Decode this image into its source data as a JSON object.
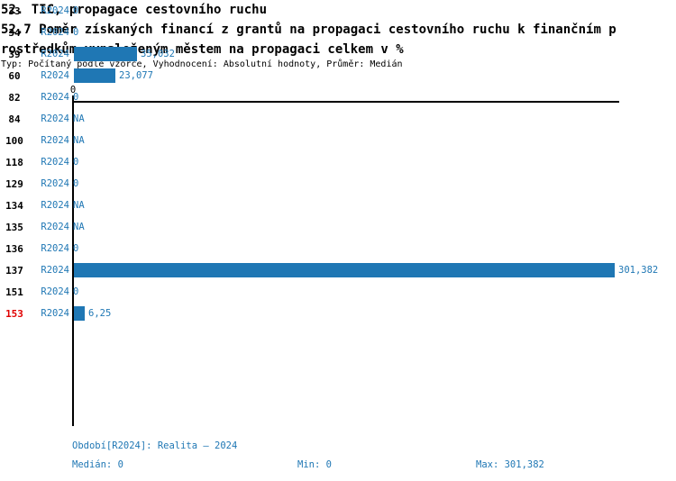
{
  "colors": {
    "blue": "#1f77b4",
    "red": "#e00000",
    "black": "#000000",
    "background": "#ffffff"
  },
  "header": {
    "line1": "52. TIC, propagace cestovního ruchu",
    "line2": "52.7 Poměr získaných financí z grantů na propagaci cestovního ruchu k finančním p",
    "line3": "rostředkům vynaloženým městem na propagaci celkem v %",
    "meta": "Typ: Počítaný podle vzorce, Vyhodnocení: Absolutní hodnoty, Průměr: Medián"
  },
  "chart_data": {
    "type": "bar",
    "orientation": "horizontal",
    "title": "52. TIC, propagace cestovního ruchu",
    "subtitle": "52.7 Poměr získaných financí z grantů na propagaci cestovního ruchu k finančním prostředkům vynaloženým městem na propagaci celkem v %",
    "value_axis": {
      "tick_labels": [
        "0"
      ],
      "range": [
        0,
        301.382
      ]
    },
    "categories": [
      "33",
      "34",
      "39",
      "60",
      "82",
      "84",
      "100",
      "118",
      "129",
      "134",
      "135",
      "136",
      "137",
      "151",
      "153"
    ],
    "series": [
      {
        "name": "R2024",
        "values": [
          0,
          0,
          35.032,
          23.077,
          0,
          null,
          null,
          0,
          0,
          null,
          null,
          0,
          301.382,
          0,
          6.25
        ]
      }
    ],
    "value_displays": [
      "0",
      "0",
      "35,032",
      "23,077",
      "0",
      "NA",
      "NA",
      "0",
      "0",
      "NA",
      "NA",
      "0",
      "301,382",
      "0",
      "6,25"
    ],
    "highlighted_categories": [
      "153"
    ],
    "grid": false,
    "legend": false
  },
  "footer": {
    "period_line": "Období[R2024]: Realita – 2024",
    "median": "Medián: 0",
    "min": "Min: 0",
    "max": "Max: 301,382"
  }
}
